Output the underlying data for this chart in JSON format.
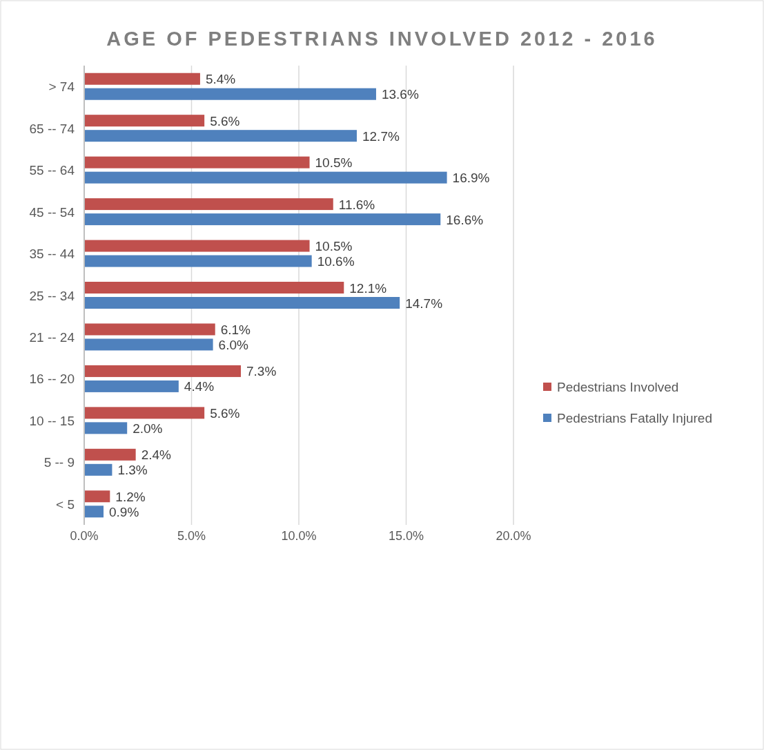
{
  "chart_data": {
    "type": "bar",
    "orientation": "horizontal",
    "title": "AGE OF PEDESTRIANS INVOLVED 2012 - 2016",
    "categories": [
      "> 74",
      "65 -- 74",
      "55 -- 64",
      "45 -- 54",
      "35 -- 44",
      "25 -- 34",
      "21 -- 24",
      "16 -- 20",
      "10 -- 15",
      "5 -- 9",
      "< 5"
    ],
    "series": [
      {
        "name": "Pedestrians Involved",
        "color": "#c0504d",
        "values": [
          5.4,
          5.6,
          10.5,
          11.6,
          10.5,
          12.1,
          6.1,
          7.3,
          5.6,
          2.4,
          1.2
        ],
        "value_labels": [
          "5.4%",
          "5.6%",
          "10.5%",
          "11.6%",
          "10.5%",
          "12.1%",
          "6.1%",
          "7.3%",
          "5.6%",
          "2.4%",
          "1.2%"
        ]
      },
      {
        "name": "Pedestrians Fatally Injured",
        "color": "#4f81bd",
        "values": [
          13.6,
          12.7,
          16.9,
          16.6,
          10.6,
          14.7,
          6.0,
          4.4,
          2.0,
          1.3,
          0.9
        ],
        "value_labels": [
          "13.6%",
          "12.7%",
          "16.9%",
          "16.6%",
          "10.6%",
          "14.7%",
          "6.0%",
          "4.4%",
          "2.0%",
          "1.3%",
          "0.9%"
        ]
      }
    ],
    "xlim": [
      0,
      20
    ],
    "xticks": [
      {
        "value": 0,
        "label": "0.0%"
      },
      {
        "value": 5,
        "label": "5.0%"
      },
      {
        "value": 10,
        "label": "10.0%"
      },
      {
        "value": 15,
        "label": "15.0%"
      },
      {
        "value": 20,
        "label": "20.0%"
      }
    ],
    "grid": "x",
    "legend": "right"
  }
}
